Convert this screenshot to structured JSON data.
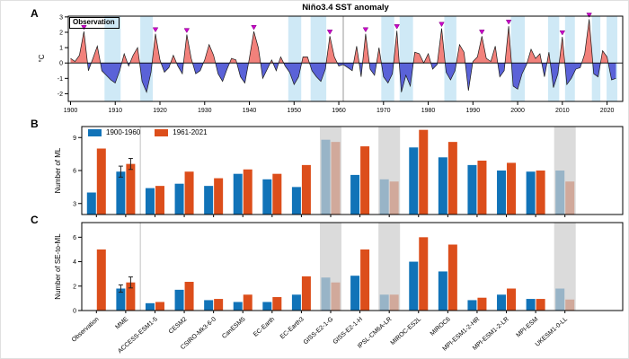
{
  "figure_title": "Niño3.4 SST anomaly",
  "legend": {
    "early_label": "1900-1960",
    "late_label": "1961-2021"
  },
  "colors": {
    "early_period_bar": "#1173b8",
    "late_period_bar": "#dc4e1b",
    "positive_anomaly_fill": "#f2817b",
    "negative_anomaly_fill": "#5a62d8",
    "series_outline": "#1a1a1a",
    "la_nina_event_band": "#cfe9f6",
    "el_nino_marker": "#cc00cc",
    "excluded_model_shading": "rgba(205,205,205,0.72)",
    "divider_line_a": "#999999",
    "divider_line_bc": "#cccccc",
    "error_bar": "#222222",
    "axis": "#000000"
  },
  "chart_data": [
    {
      "id": "panel_a",
      "panel_label": "A",
      "type": "area",
      "title": "Niño3.4 SST anomaly",
      "annotation": "Observation",
      "ylabel": "°C",
      "ylim": [
        -2.5,
        3.05
      ],
      "yticks": [
        3,
        2,
        1,
        0,
        -1,
        -2
      ],
      "xlim": [
        1899.5,
        2023.5
      ],
      "xticks": [
        1900,
        1910,
        1920,
        1930,
        1940,
        1950,
        1960,
        1970,
        1980,
        1990,
        2000,
        2010,
        2020
      ],
      "divider_year": 1961,
      "years": [
        1900,
        1901,
        1902,
        1903,
        1904,
        1905,
        1906,
        1907,
        1908,
        1909,
        1910,
        1911,
        1912,
        1913,
        1914,
        1915,
        1916,
        1917,
        1918,
        1919,
        1920,
        1921,
        1922,
        1923,
        1924,
        1925,
        1926,
        1927,
        1928,
        1929,
        1930,
        1931,
        1932,
        1933,
        1934,
        1935,
        1936,
        1937,
        1938,
        1939,
        1940,
        1941,
        1942,
        1943,
        1944,
        1945,
        1946,
        1947,
        1948,
        1949,
        1950,
        1951,
        1952,
        1953,
        1954,
        1955,
        1956,
        1957,
        1958,
        1959,
        1960,
        1961,
        1962,
        1963,
        1964,
        1965,
        1966,
        1967,
        1968,
        1969,
        1970,
        1971,
        1972,
        1973,
        1974,
        1975,
        1976,
        1977,
        1978,
        1979,
        1980,
        1981,
        1982,
        1983,
        1984,
        1985,
        1986,
        1987,
        1988,
        1989,
        1990,
        1991,
        1992,
        1993,
        1994,
        1995,
        1996,
        1997,
        1998,
        1999,
        2000,
        2001,
        2002,
        2003,
        2004,
        2005,
        2006,
        2007,
        2008,
        2009,
        2010,
        2011,
        2012,
        2013,
        2014,
        2015,
        2016,
        2017,
        2018,
        2019,
        2020,
        2021,
        2022
      ],
      "values": [
        0.3,
        0.1,
        0.5,
        2.05,
        -0.5,
        0.3,
        1.1,
        -0.5,
        -0.8,
        -1.1,
        -1.3,
        -0.5,
        0.6,
        -0.2,
        0.5,
        1.0,
        -1.2,
        -1.9,
        -0.6,
        1.9,
        0.2,
        -0.6,
        -0.3,
        0.5,
        -0.2,
        -0.7,
        1.85,
        0.3,
        -0.7,
        -0.5,
        0.2,
        1.2,
        0.5,
        -0.7,
        -1.2,
        -0.4,
        0.3,
        0.2,
        -0.9,
        -1.3,
        0.3,
        2.05,
        1.0,
        -1.0,
        -0.4,
        0.2,
        -0.5,
        0.4,
        -0.2,
        -0.6,
        -1.4,
        -0.9,
        0.4,
        0.4,
        -0.5,
        -0.9,
        -1.2,
        -0.4,
        1.75,
        0.4,
        -0.2,
        -0.1,
        -0.3,
        -0.5,
        1.1,
        -0.9,
        1.9,
        -0.4,
        -0.8,
        1.0,
        -0.9,
        -1.3,
        -0.7,
        2.1,
        -1.9,
        -0.8,
        -1.5,
        0.7,
        0.6,
        0.0,
        0.6,
        -0.4,
        -0.1,
        2.25,
        -0.6,
        -1.1,
        -0.5,
        1.2,
        0.7,
        -1.8,
        0.1,
        0.4,
        1.75,
        0.3,
        0.1,
        1.1,
        -0.9,
        -0.5,
        2.4,
        -1.5,
        -1.7,
        -0.7,
        -0.1,
        0.9,
        0.3,
        0.6,
        -0.9,
        0.7,
        -1.6,
        -0.7,
        1.7,
        -1.4,
        -1.0,
        -0.4,
        -0.3,
        0.6,
        2.85,
        -0.7,
        -0.9,
        0.8,
        0.4,
        -1.1,
        -1.0
      ],
      "marker_years": [
        1903,
        1919,
        1926,
        1941,
        1958,
        1966,
        1973,
        1983,
        1992,
        1998,
        2010,
        2016
      ],
      "event_bands": [
        [
          1907.6,
          1911.2
        ],
        [
          1915.6,
          1918.4
        ],
        [
          1948.7,
          1951.6
        ],
        [
          1953.7,
          1957.2
        ],
        [
          1969.5,
          1972.4
        ],
        [
          1973.6,
          1976.6
        ],
        [
          1983.6,
          1986.3
        ],
        [
          1998.5,
          2001.6
        ],
        [
          2006.8,
          2009.3
        ],
        [
          2010.6,
          2012.8
        ],
        [
          2016.6,
          2018.5
        ],
        [
          2019.9,
          2022.3
        ]
      ]
    },
    {
      "id": "panel_b",
      "panel_label": "B",
      "type": "bar",
      "ylabel": "Number of ML",
      "ylim": [
        2,
        10
      ],
      "yticks": [
        3,
        6,
        9
      ],
      "divider_after_index": 2,
      "categories": [
        "Observation",
        "MME",
        "ACCESS-ESM1-5",
        "CESM2",
        "CSIRO-Mk3-6-0",
        "CanESM5",
        "EC-Earth",
        "EC-Earth3",
        "GISS-E2-1-G",
        "GISS-E2-1-H",
        "IPSL-CM6A-LR",
        "MIROC-ES2L",
        "MIROC6",
        "MPI-ESM1-2-HR",
        "MPI-ESM1-2-LR",
        "MPI-ESM",
        "UKESM1-0-LL"
      ],
      "series": [
        {
          "name": "1900-1960",
          "values": [
            4.0,
            5.9,
            4.4,
            4.8,
            4.6,
            5.7,
            5.2,
            4.5,
            8.8,
            5.6,
            5.2,
            8.1,
            7.2,
            6.5,
            6.0,
            5.9,
            6.0
          ]
        },
        {
          "name": "1961-2021",
          "values": [
            8.0,
            6.6,
            4.6,
            5.9,
            5.3,
            6.1,
            5.7,
            6.5,
            8.6,
            8.2,
            5.0,
            9.7,
            8.6,
            6.9,
            6.7,
            6.0,
            5.0
          ]
        }
      ],
      "error_bars": [
        {
          "category": "MME",
          "series1": 0.5,
          "series2": 0.5
        }
      ],
      "shaded_categories": [
        "GISS-E2-1-G",
        "IPSL-CM6A-LR",
        "UKESM1-0-LL"
      ],
      "show_category_labels": false
    },
    {
      "id": "panel_c",
      "panel_label": "C",
      "type": "bar",
      "ylabel": "Number of SE-to-ML",
      "ylim": [
        0,
        7.2
      ],
      "yticks": [
        0,
        2,
        4,
        6
      ],
      "divider_after_index": 2,
      "categories": [
        "Observation",
        "MME",
        "ACCESS-ESM1-5",
        "CESM2",
        "CSIRO-Mk3-6-0",
        "CanESM5",
        "EC-Earth",
        "EC-Earth3",
        "GISS-E2-1-G",
        "GISS-E2-1-H",
        "IPSL-CM6A-LR",
        "MIROC-ES2L",
        "MIROC6",
        "MPI-ESM1-2-HR",
        "MPI-ESM1-2-LR",
        "MPI-ESM",
        "UKESM1-0-LL"
      ],
      "series": [
        {
          "name": "1900-1960",
          "values": [
            0,
            1.8,
            0.6,
            1.7,
            0.85,
            0.7,
            0.7,
            1.3,
            2.7,
            2.85,
            1.3,
            4.0,
            3.2,
            0.85,
            1.3,
            0.95,
            1.8
          ]
        },
        {
          "name": "1961-2021",
          "values": [
            5.0,
            2.3,
            0.7,
            2.35,
            0.95,
            1.3,
            1.1,
            2.8,
            2.3,
            5.0,
            1.3,
            6.0,
            5.4,
            1.05,
            1.8,
            0.95,
            0.9
          ]
        }
      ],
      "error_bars": [
        {
          "category": "MME",
          "series1": 0.3,
          "series2": 0.45
        }
      ],
      "shaded_categories": [
        "GISS-E2-1-G",
        "IPSL-CM6A-LR",
        "UKESM1-0-LL"
      ],
      "show_category_labels": true
    }
  ]
}
